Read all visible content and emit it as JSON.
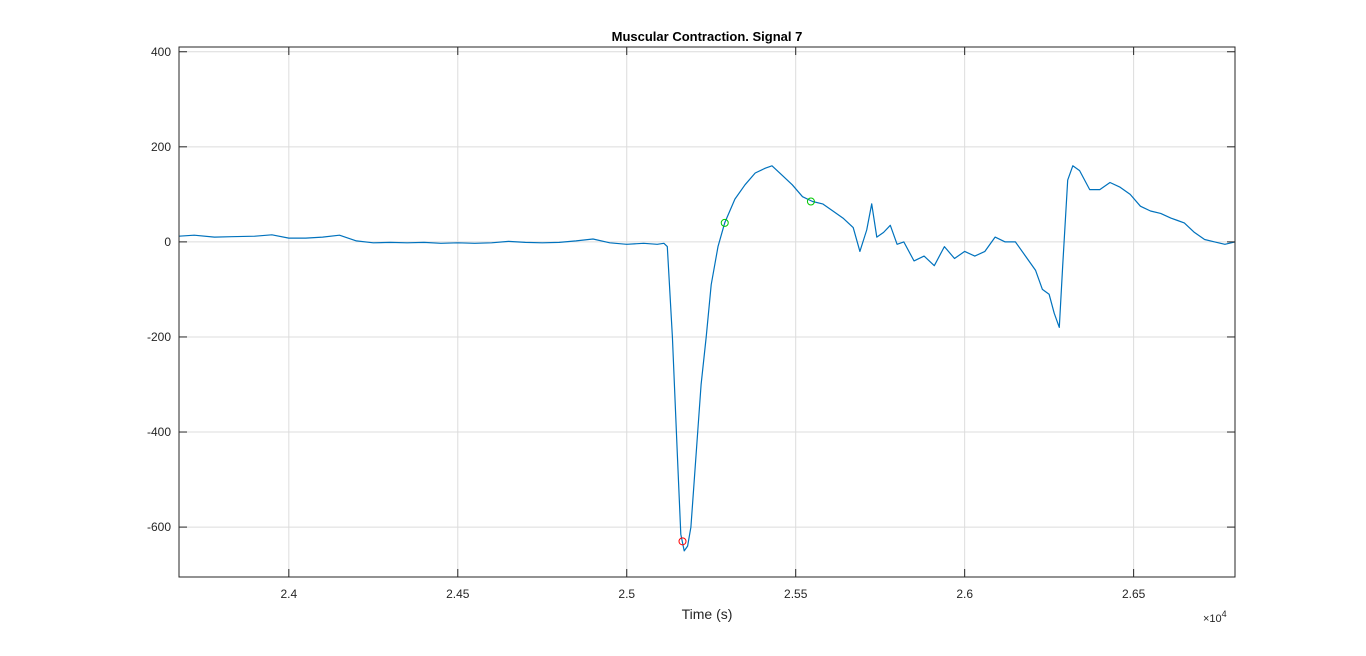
{
  "chart_data": {
    "type": "line",
    "title": "Muscular Contraction. Signal 7",
    "xlabel": "Time (s)",
    "ylabel": "",
    "x_exponent_label": "×10",
    "x_exponent_power": "4",
    "xlim": [
      2.3675,
      2.68
    ],
    "ylim": [
      -705,
      410
    ],
    "xticks": [
      2.4,
      2.45,
      2.5,
      2.55,
      2.6,
      2.65
    ],
    "xtick_labels": [
      "2.4",
      "2.45",
      "2.5",
      "2.55",
      "2.6",
      "2.65"
    ],
    "yticks": [
      -600,
      -400,
      -200,
      0,
      200,
      400
    ],
    "ytick_labels": [
      "-600",
      "-400",
      "-200",
      "0",
      "200",
      "400"
    ],
    "grid": true,
    "series": [
      {
        "color": "#0072BD",
        "x": [
          2.3675,
          2.372,
          2.378,
          2.383,
          2.39,
          2.395,
          2.4,
          2.405,
          2.41,
          2.415,
          2.42,
          2.425,
          2.43,
          2.435,
          2.44,
          2.445,
          2.45,
          2.455,
          2.46,
          2.465,
          2.47,
          2.475,
          2.48,
          2.485,
          2.49,
          2.495,
          2.5,
          2.505,
          2.509,
          2.511,
          2.512,
          2.5135,
          2.515,
          2.516,
          2.517,
          2.518,
          2.519,
          2.52,
          2.521,
          2.522,
          2.5235,
          2.525,
          2.527,
          2.529,
          2.532,
          2.535,
          2.538,
          2.541,
          2.543,
          2.546,
          2.549,
          2.552,
          2.555,
          2.558,
          2.561,
          2.564,
          2.567,
          2.569,
          2.571,
          2.5725,
          2.574,
          2.576,
          2.578,
          2.58,
          2.582,
          2.585,
          2.588,
          2.591,
          2.594,
          2.597,
          2.6,
          2.603,
          2.606,
          2.609,
          2.612,
          2.615,
          2.618,
          2.621,
          2.623,
          2.625,
          2.6265,
          2.628,
          2.629,
          2.6305,
          2.632,
          2.634,
          2.637,
          2.64,
          2.643,
          2.646,
          2.649,
          2.652,
          2.655,
          2.658,
          2.661,
          2.663,
          2.665,
          2.668,
          2.671,
          2.674,
          2.677,
          2.68
        ],
        "y": [
          12,
          14,
          10,
          11,
          12,
          15,
          8,
          8,
          10,
          14,
          2,
          -2,
          -1,
          -2,
          -1,
          -3,
          -2,
          -3,
          -2,
          1,
          -1,
          -2,
          -1,
          2,
          6,
          -2,
          -5,
          -3,
          -5,
          -3,
          -10,
          -200,
          -450,
          -615,
          -650,
          -640,
          -600,
          -500,
          -400,
          -300,
          -200,
          -90,
          -10,
          40,
          90,
          120,
          145,
          155,
          160,
          140,
          120,
          95,
          85,
          80,
          65,
          50,
          30,
          -20,
          25,
          80,
          10,
          20,
          35,
          -5,
          0,
          -40,
          -30,
          -50,
          -10,
          -35,
          -20,
          -30,
          -20,
          10,
          0,
          0,
          -30,
          -60,
          -100,
          -110,
          -150,
          -180,
          -50,
          130,
          160,
          150,
          110,
          110,
          125,
          115,
          100,
          75,
          65,
          60,
          50,
          45,
          40,
          20,
          5,
          0,
          -5,
          0
        ]
      }
    ],
    "markers": [
      {
        "x": 2.5165,
        "y": -630,
        "color": "#FF0000"
      },
      {
        "x": 2.529,
        "y": 40,
        "color": "#00C800"
      },
      {
        "x": 2.5545,
        "y": 85,
        "color": "#00C800"
      }
    ]
  }
}
